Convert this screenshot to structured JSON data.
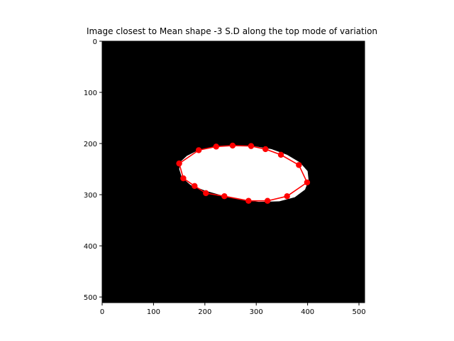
{
  "chart_data": {
    "type": "scatter",
    "title": "Image closest to Mean shape -3 S.D along the top mode of variation",
    "xlabel": "",
    "ylabel": "",
    "xlim": [
      0,
      511
    ],
    "ylim": [
      511,
      0
    ],
    "x_ticks": [
      0,
      100,
      200,
      300,
      400,
      500
    ],
    "y_ticks": [
      0,
      100,
      200,
      300,
      400,
      500
    ],
    "image": {
      "background": "#000000",
      "foreground": "#ffffff",
      "shape_outline_xy": [
        [
          152,
          236
        ],
        [
          165,
          224
        ],
        [
          185,
          214
        ],
        [
          215,
          207
        ],
        [
          255,
          204
        ],
        [
          295,
          205
        ],
        [
          330,
          211
        ],
        [
          360,
          222
        ],
        [
          385,
          237
        ],
        [
          400,
          254
        ],
        [
          402,
          272
        ],
        [
          395,
          290
        ],
        [
          375,
          305
        ],
        [
          345,
          313
        ],
        [
          305,
          314
        ],
        [
          270,
          310
        ],
        [
          235,
          302
        ],
        [
          200,
          292
        ],
        [
          172,
          281
        ],
        [
          155,
          266
        ],
        [
          150,
          250
        ]
      ]
    },
    "series": [
      {
        "color": "#ff0000",
        "closed": true,
        "x": [
          150,
          158,
          180,
          202,
          238,
          285,
          322,
          360,
          399,
          383,
          348,
          318,
          290,
          254,
          222,
          188
        ],
        "y": [
          239,
          268,
          283,
          297,
          303,
          312,
          312,
          303,
          276,
          242,
          222,
          211,
          205,
          204,
          206,
          213
        ]
      }
    ],
    "grid": false
  }
}
